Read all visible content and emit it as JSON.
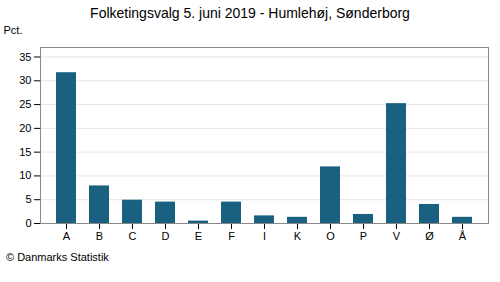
{
  "chart_data": {
    "type": "bar",
    "title": "Folketingsvalg 5. juni 2019 - Humlehøj, Sønderborg",
    "categories": [
      "A",
      "B",
      "C",
      "D",
      "E",
      "F",
      "I",
      "K",
      "O",
      "P",
      "V",
      "Ø",
      "Å"
    ],
    "values": [
      31.7,
      7.9,
      4.9,
      4.5,
      0.5,
      4.5,
      1.6,
      1.3,
      11.9,
      1.9,
      25.2,
      4.0,
      1.3
    ],
    "color": "#1a6080",
    "ylabel": "Pct.",
    "ylim": [
      0,
      37
    ],
    "yticks": [
      0,
      5,
      10,
      15,
      20,
      25,
      30,
      35
    ],
    "grid": true,
    "caption": "© Danmarks Statistik"
  }
}
